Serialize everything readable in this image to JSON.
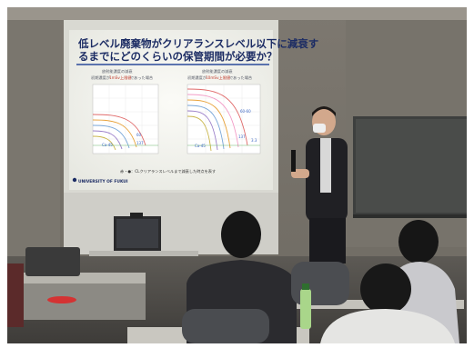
{
  "slide": {
    "title_line1": "低レベル廃棄物がクリアランスレベル以下に減衰す",
    "title_line2": "るまでにどのくらいの保管期間が必要か？",
    "left_chart": {
      "header": "放射能濃度の減衰",
      "subheader_pre": "初期濃度が",
      "subheader_red": "1mSv上限値",
      "subheader_post": "であった場合"
    },
    "right_chart": {
      "header": "放射能濃度の減衰",
      "subheader_pre": "初期濃度が",
      "subheader_red": "10mSv上限値",
      "subheader_post": "であった場合"
    },
    "footer_note": "赤・●：CLクリアランスレベルまで減衰した時点を表す",
    "logo_text": "UNIVERSITY OF FUKUI",
    "left_annotations": [
      "60",
      "Ca-45",
      "137"
    ],
    "right_annotations": [
      "60-60",
      "Ca-45",
      "137",
      "3.3"
    ]
  },
  "colors": {
    "wall": "#8a857b",
    "screen": "#f3f3ee",
    "title": "#1c2c64",
    "accent_red": "#c0392b",
    "curve_colors": [
      "#e06a6a",
      "#e8a23a",
      "#7aa7d8",
      "#9b7fc9",
      "#c9b54a",
      "#f29cc7"
    ]
  }
}
